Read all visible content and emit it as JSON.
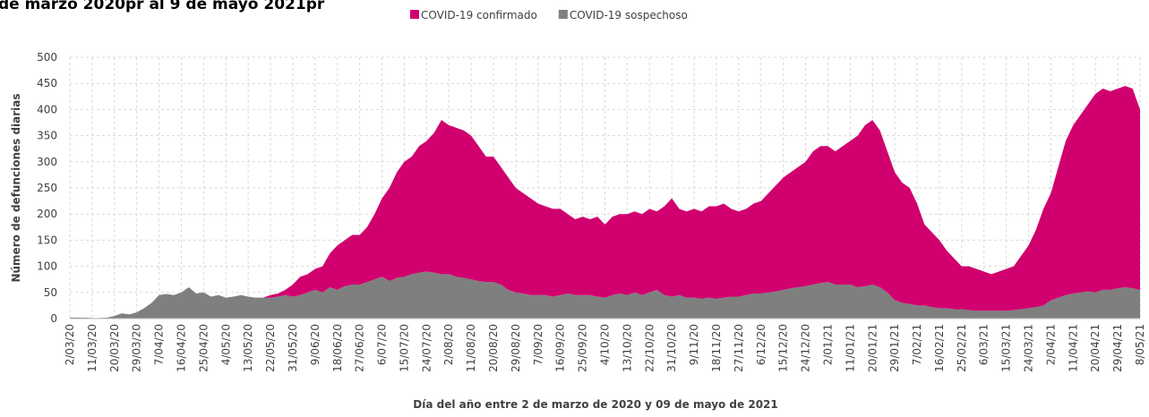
{
  "chart_data": {
    "type": "stacked_area",
    "title": "de marzo 2020pr al 9 de mayo 2021pr",
    "ylabel": "Número de defunciones diarias",
    "xlabel": "Día del año entre 2 de marzo de 2020 y 09 de mayo de 2021",
    "legend": "top",
    "grid": true,
    "ylim": [
      0,
      500
    ],
    "yticks": [
      0,
      50,
      100,
      150,
      200,
      250,
      300,
      350,
      400,
      450,
      500
    ],
    "categories": [
      "2/03/20",
      null,
      null,
      "11/03/20",
      null,
      null,
      "20/03/20",
      null,
      null,
      "29/03/20",
      null,
      null,
      "7/04/20",
      null,
      null,
      "16/04/20",
      null,
      null,
      "25/04/20",
      null,
      null,
      "4/05/20",
      null,
      null,
      "13/05/20",
      null,
      null,
      "22/05/20",
      null,
      null,
      "31/05/20",
      null,
      null,
      "9/06/20",
      null,
      null,
      "18/06/20",
      null,
      null,
      "27/06/20",
      null,
      null,
      "6/07/20",
      null,
      null,
      "15/07/20",
      null,
      null,
      "24/07/20",
      null,
      null,
      "2/08/20",
      null,
      null,
      "11/08/20",
      null,
      null,
      "20/08/20",
      null,
      null,
      "29/08/20",
      null,
      null,
      "7/09/20",
      null,
      null,
      "16/09/20",
      null,
      null,
      "25/09/20",
      null,
      null,
      "4/10/20",
      null,
      null,
      "13/10/20",
      null,
      null,
      "22/10/20",
      null,
      null,
      "31/10/20",
      null,
      null,
      "9/11/20",
      null,
      null,
      "18/11/20",
      null,
      null,
      "27/11/20",
      null,
      null,
      "6/12/20",
      null,
      null,
      "15/12/20",
      null,
      null,
      "24/12/20",
      null,
      null,
      "2/01/21",
      null,
      null,
      "11/01/21",
      null,
      null,
      "20/01/21",
      null,
      null,
      "29/01/21",
      null,
      null,
      "7/02/21",
      null,
      null,
      "16/02/21",
      null,
      null,
      "25/02/21",
      null,
      null,
      "6/03/21",
      null,
      null,
      "15/03/21",
      null,
      null,
      "24/03/21",
      null,
      null,
      "2/04/21",
      null,
      null,
      "11/04/21",
      null,
      null,
      "20/04/21",
      null,
      null,
      "29/04/21",
      null,
      null,
      "8/05/21"
    ],
    "series": [
      {
        "name": "COVID-19 sospechoso",
        "color": "#7f7f7f",
        "values": [
          2,
          2,
          2,
          1,
          1,
          2,
          5,
          10,
          8,
          12,
          20,
          30,
          45,
          47,
          45,
          50,
          60,
          48,
          50,
          42,
          45,
          40,
          42,
          45,
          42,
          40,
          40,
          40,
          42,
          45,
          42,
          45,
          50,
          55,
          50,
          60,
          55,
          62,
          65,
          65,
          70,
          75,
          80,
          72,
          78,
          80,
          85,
          88,
          90,
          88,
          85,
          85,
          80,
          78,
          75,
          72,
          70,
          70,
          65,
          55,
          50,
          48,
          45,
          45,
          45,
          42,
          45,
          48,
          45,
          45,
          45,
          42,
          40,
          45,
          48,
          45,
          50,
          45,
          50,
          55,
          45,
          42,
          45,
          40,
          40,
          38,
          40,
          38,
          40,
          42,
          42,
          45,
          48,
          48,
          50,
          52,
          55,
          58,
          60,
          62,
          65,
          68,
          70,
          65,
          65,
          65,
          60,
          62,
          65,
          60,
          50,
          35,
          30,
          28,
          25,
          25,
          22,
          20,
          20,
          18,
          18,
          16,
          15,
          15,
          15,
          15,
          15,
          16,
          18,
          20,
          22,
          25,
          35,
          40,
          45,
          48,
          50,
          52,
          50,
          55,
          55,
          58,
          60,
          58,
          55
        ]
      },
      {
        "name": "COVID-19 confirmado",
        "color": "#d0006f",
        "values": [
          0,
          0,
          0,
          0,
          0,
          0,
          0,
          0,
          0,
          0,
          0,
          0,
          0,
          0,
          0,
          0,
          0,
          0,
          0,
          0,
          0,
          0,
          0,
          0,
          0,
          0,
          0,
          5,
          6,
          10,
          23,
          35,
          35,
          40,
          50,
          65,
          85,
          88,
          95,
          95,
          105,
          125,
          150,
          178,
          202,
          220,
          225,
          242,
          250,
          267,
          295,
          285,
          285,
          282,
          275,
          258,
          240,
          240,
          225,
          215,
          200,
          192,
          185,
          175,
          170,
          168,
          165,
          152,
          145,
          150,
          145,
          153,
          140,
          150,
          152,
          155,
          155,
          155,
          160,
          150,
          170,
          188,
          165,
          165,
          170,
          167,
          175,
          177,
          180,
          168,
          163,
          165,
          172,
          177,
          190,
          203,
          215,
          222,
          230,
          238,
          255,
          262,
          260,
          255,
          265,
          275,
          290,
          308,
          315,
          300,
          270,
          245,
          230,
          222,
          195,
          155,
          143,
          130,
          110,
          97,
          82,
          84,
          80,
          75,
          70,
          75,
          80,
          84,
          102,
          120,
          148,
          185,
          205,
          250,
          295,
          322,
          340,
          358,
          380,
          385,
          380,
          382,
          385,
          382,
          345
        ]
      }
    ]
  }
}
